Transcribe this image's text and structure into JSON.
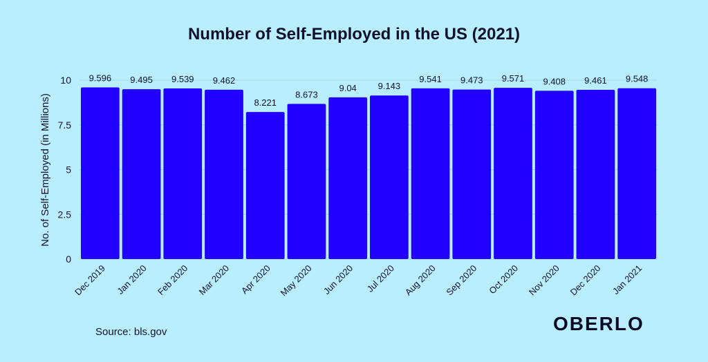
{
  "chart_data": {
    "type": "bar",
    "title": "Number of Self-Employed in the US (2021)",
    "xlabel": "",
    "ylabel": "No. of Self-Employed (in Millions)",
    "ylim": [
      0,
      10
    ],
    "yticks": [
      "0",
      "2.5",
      "5",
      "7.5",
      "10"
    ],
    "categories": [
      "Dec 2019",
      "Jan 2020",
      "Feb 2020",
      "Mar 2020",
      "Apr 2020",
      "May 2020",
      "Jun 2020",
      "Jul 2020",
      "Aug 2020",
      "Sep 2020",
      "Oct 2020",
      "Nov 2020",
      "Dec 2020",
      "Jan 2021"
    ],
    "values": [
      9.596,
      9.495,
      9.539,
      9.462,
      8.221,
      8.673,
      9.04,
      9.143,
      9.541,
      9.473,
      9.571,
      9.408,
      9.461,
      9.548
    ],
    "value_labels": [
      "9.596",
      "9.495",
      "9.539",
      "9.462",
      "8.221",
      "8.673",
      "9.04",
      "9.143",
      "9.541",
      "9.473",
      "9.571",
      "9.408",
      "9.461",
      "9.548"
    ],
    "bar_color": "#2200ff",
    "grid": true
  },
  "source": "Source: bls.gov",
  "brand": "OBERLO",
  "colors": {
    "background": "#b8eeff",
    "bar": "#2200ff",
    "text": "#101028"
  }
}
